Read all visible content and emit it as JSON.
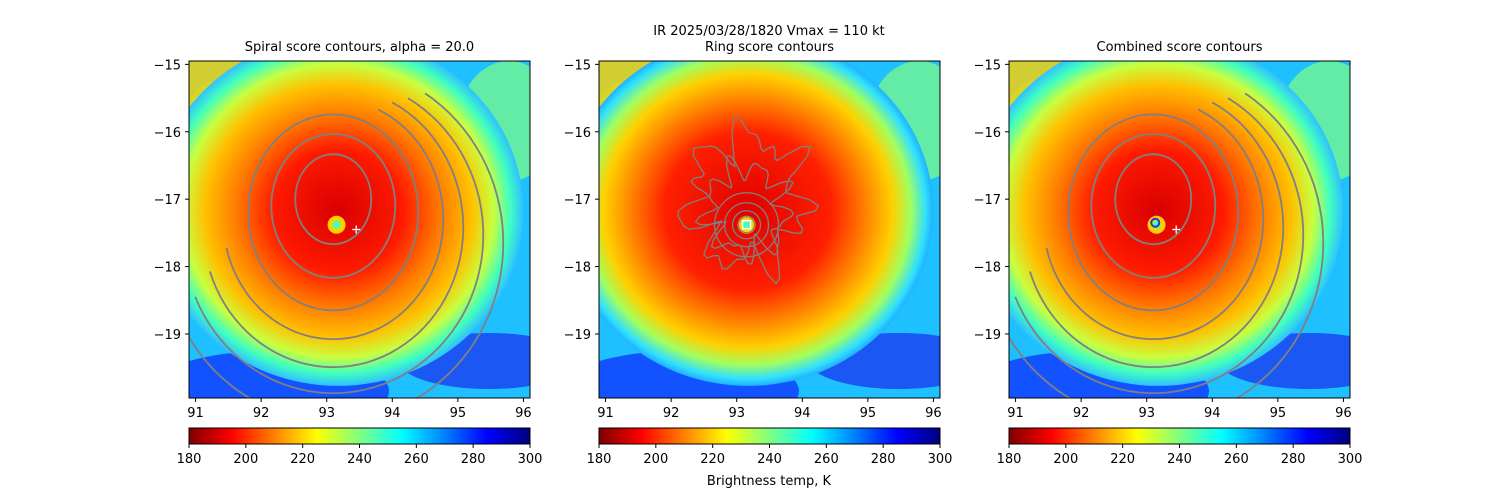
{
  "suptitle": "IR  2025/03/28/1820    Vmax = 110 kt",
  "colorbar_label": "Brightness temp, K",
  "colormap": [
    "#7f0000",
    "#ff0000",
    "#ff8000",
    "#ffff00",
    "#80ff80",
    "#00ffff",
    "#0080ff",
    "#0000ff",
    "#00007f"
  ],
  "contour_color": "#808080",
  "chart_data": [
    {
      "type": "heatmap",
      "title": "Spiral score contours, alpha = 20.0",
      "xlabel": "",
      "ylabel": "",
      "xlim": [
        90.9,
        96.1
      ],
      "ylim": [
        -19.95,
        -14.95
      ],
      "xticks": [
        "91",
        "92",
        "93",
        "94",
        "95",
        "96"
      ],
      "yticks": [
        "−15",
        "−16",
        "−17",
        "−18",
        "−19"
      ],
      "colorbar": {
        "range": [
          180,
          300
        ],
        "ticks": [
          "180",
          "200",
          "220",
          "240",
          "260",
          "280",
          "300"
        ]
      },
      "markers": [
        {
          "kind": "first-guess-plus",
          "x": 93.45,
          "y": -17.45,
          "color": "#ffffff"
        }
      ]
    },
    {
      "type": "heatmap",
      "title": "Ring score contours",
      "xlabel": "",
      "ylabel": "",
      "xlim": [
        90.9,
        96.1
      ],
      "ylim": [
        -19.95,
        -14.95
      ],
      "xticks": [
        "91",
        "92",
        "93",
        "94",
        "95",
        "96"
      ],
      "yticks": [
        "−15",
        "−16",
        "−17",
        "−18",
        "−19"
      ],
      "colorbar": {
        "range": [
          180,
          300
        ],
        "ticks": [
          "180",
          "200",
          "220",
          "240",
          "260",
          "280",
          "300"
        ]
      },
      "markers": [
        {
          "kind": "square",
          "x": 93.15,
          "y": -17.38,
          "color": "#ffffff"
        }
      ]
    },
    {
      "type": "heatmap",
      "title": "Combined score contours",
      "xlabel": "",
      "ylabel": "",
      "xlim": [
        90.9,
        96.1
      ],
      "ylim": [
        -19.95,
        -14.95
      ],
      "xticks": [
        "91",
        "92",
        "93",
        "94",
        "95",
        "96"
      ],
      "yticks": [
        "−15",
        "−16",
        "−17",
        "−18",
        "−19"
      ],
      "colorbar": {
        "range": [
          180,
          300
        ],
        "ticks": [
          "180",
          "200",
          "220",
          "240",
          "260",
          "280",
          "300"
        ]
      },
      "markers": [
        {
          "kind": "circle",
          "x": 93.13,
          "y": -17.35,
          "color": "#3333cc"
        },
        {
          "kind": "first-guess-plus",
          "x": 93.45,
          "y": -17.45,
          "color": "#ffffff"
        }
      ]
    }
  ]
}
